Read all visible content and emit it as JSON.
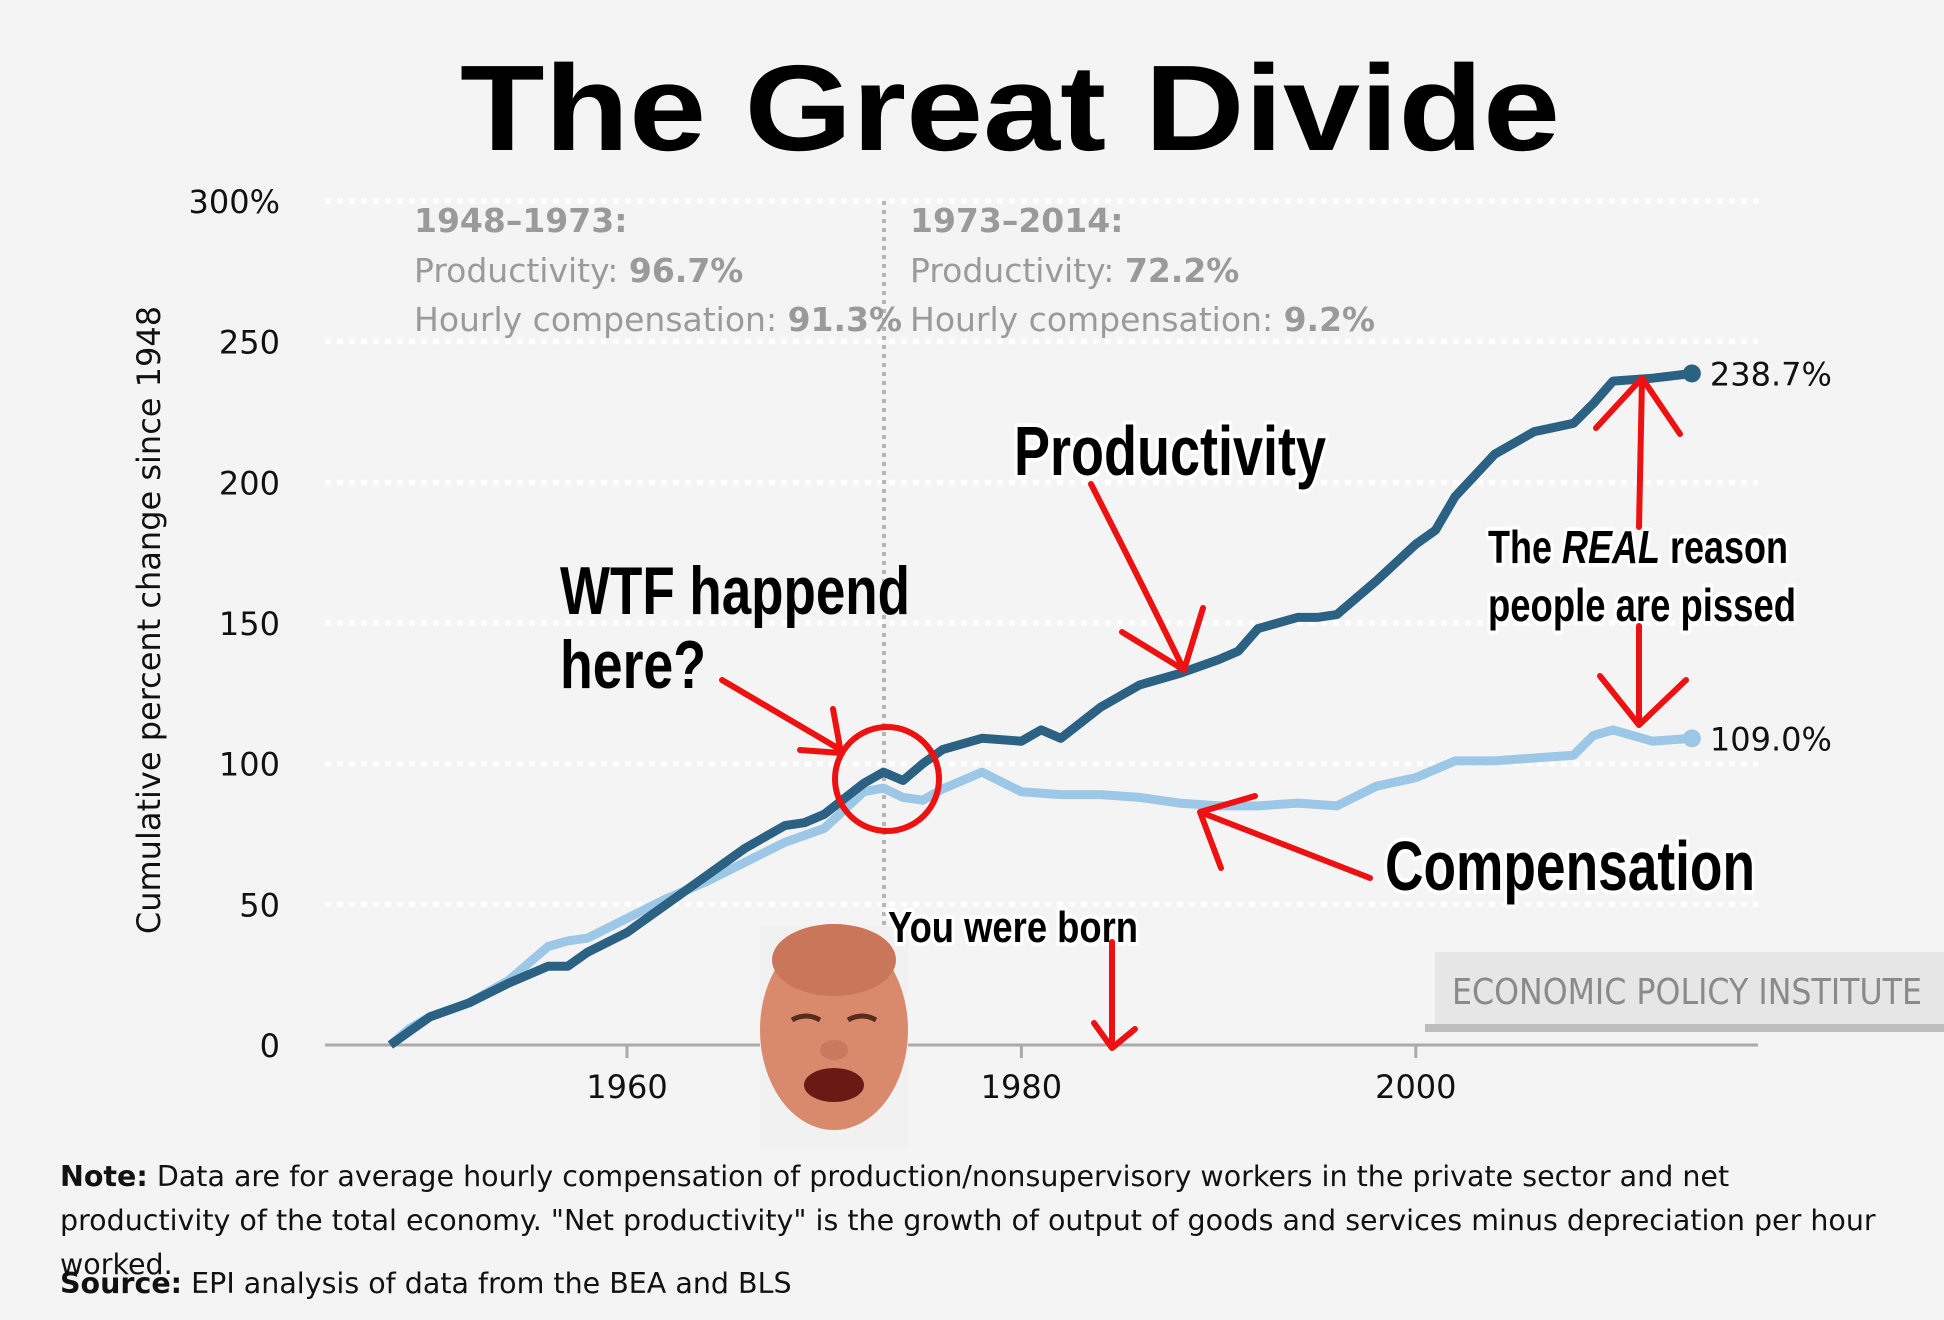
{
  "title": "The Great Divide",
  "chart_data": {
    "type": "line",
    "title": "The Great Divide",
    "xlabel": "",
    "ylabel": "Cumulative percent change since 1948",
    "xlim": [
      1945,
      2021
    ],
    "ylim": [
      0,
      300
    ],
    "x_ticks": [
      "1960",
      "1980",
      "2000"
    ],
    "y_ticks": [
      "0",
      "50",
      "100",
      "150",
      "200",
      "250",
      "300%"
    ],
    "grid": "horizontal dotted",
    "series": [
      {
        "name": "Productivity",
        "color": "#2b6283",
        "end_label": "238.7%",
        "x": [
          1948,
          1949,
          1950,
          1952,
          1954,
          1956,
          1957,
          1958,
          1960,
          1962,
          1964,
          1966,
          1968,
          1969,
          1970,
          1972,
          1973,
          1974,
          1975,
          1976,
          1978,
          1980,
          1981,
          1982,
          1984,
          1986,
          1988,
          1990,
          1991,
          1992,
          1994,
          1995,
          1996,
          1998,
          2000,
          2001,
          2002,
          2004,
          2006,
          2008,
          2009,
          2010,
          2012,
          2014
        ],
        "y": [
          0,
          5,
          10,
          15,
          22,
          28,
          28,
          33,
          40,
          50,
          60,
          70,
          78,
          79,
          82,
          93,
          97,
          94,
          100,
          105,
          109,
          108,
          112,
          109,
          120,
          128,
          132,
          137,
          140,
          148,
          152,
          152,
          153,
          165,
          178,
          183,
          195,
          210,
          218,
          221,
          228,
          236,
          237,
          238.7
        ]
      },
      {
        "name": "Hourly compensation",
        "color": "#9cc7e6",
        "end_label": "109.0%",
        "x": [
          1948,
          1949,
          1950,
          1952,
          1954,
          1956,
          1957,
          1958,
          1960,
          1962,
          1964,
          1966,
          1968,
          1970,
          1972,
          1973,
          1974,
          1975,
          1976,
          1978,
          1980,
          1982,
          1984,
          1986,
          1988,
          1990,
          1992,
          1994,
          1996,
          1998,
          2000,
          2002,
          2004,
          2006,
          2008,
          2009,
          2010,
          2012,
          2014
        ],
        "y": [
          0,
          6,
          10,
          15,
          23,
          35,
          37,
          38,
          45,
          52,
          58,
          65,
          72,
          77,
          90,
          91.3,
          88,
          87,
          91,
          97,
          90,
          89,
          89,
          88,
          86,
          85,
          85,
          86,
          85,
          92,
          95,
          101,
          101,
          102,
          103,
          110,
          112,
          108,
          109
        ]
      }
    ],
    "annotations": {
      "period1": {
        "heading": "1948–1973:",
        "prod_label": "Productivity:",
        "prod_value": "96.7%",
        "comp_label": "Hourly compensation:",
        "comp_value": "91.3%"
      },
      "period2": {
        "heading": "1973–2014:",
        "prod_label": "Productivity:",
        "prod_value": "72.2%",
        "comp_label": "Hourly compensation:",
        "comp_value": "9.2%"
      },
      "wtf_line1": "WTF happend",
      "wtf_line2": "here?",
      "productivity": "Productivity",
      "compensation": "Compensation",
      "real_pre": "The ",
      "real_em": "REAL",
      "real_post": " reason",
      "real_line2": "people are pissed",
      "born": "You were born"
    }
  },
  "watermark": "ECONOMIC POLICY INSTITUTE",
  "note": {
    "label": "Note:",
    "text": " Data are for average hourly compensation of production/nonsupervisory workers in the private sector and net productivity of the total economy. \"Net productivity\" is the growth of output of goods and services minus depreciation per hour worked."
  },
  "source": {
    "label": "Source:",
    "text": " EPI analysis of data from the BEA and BLS"
  }
}
